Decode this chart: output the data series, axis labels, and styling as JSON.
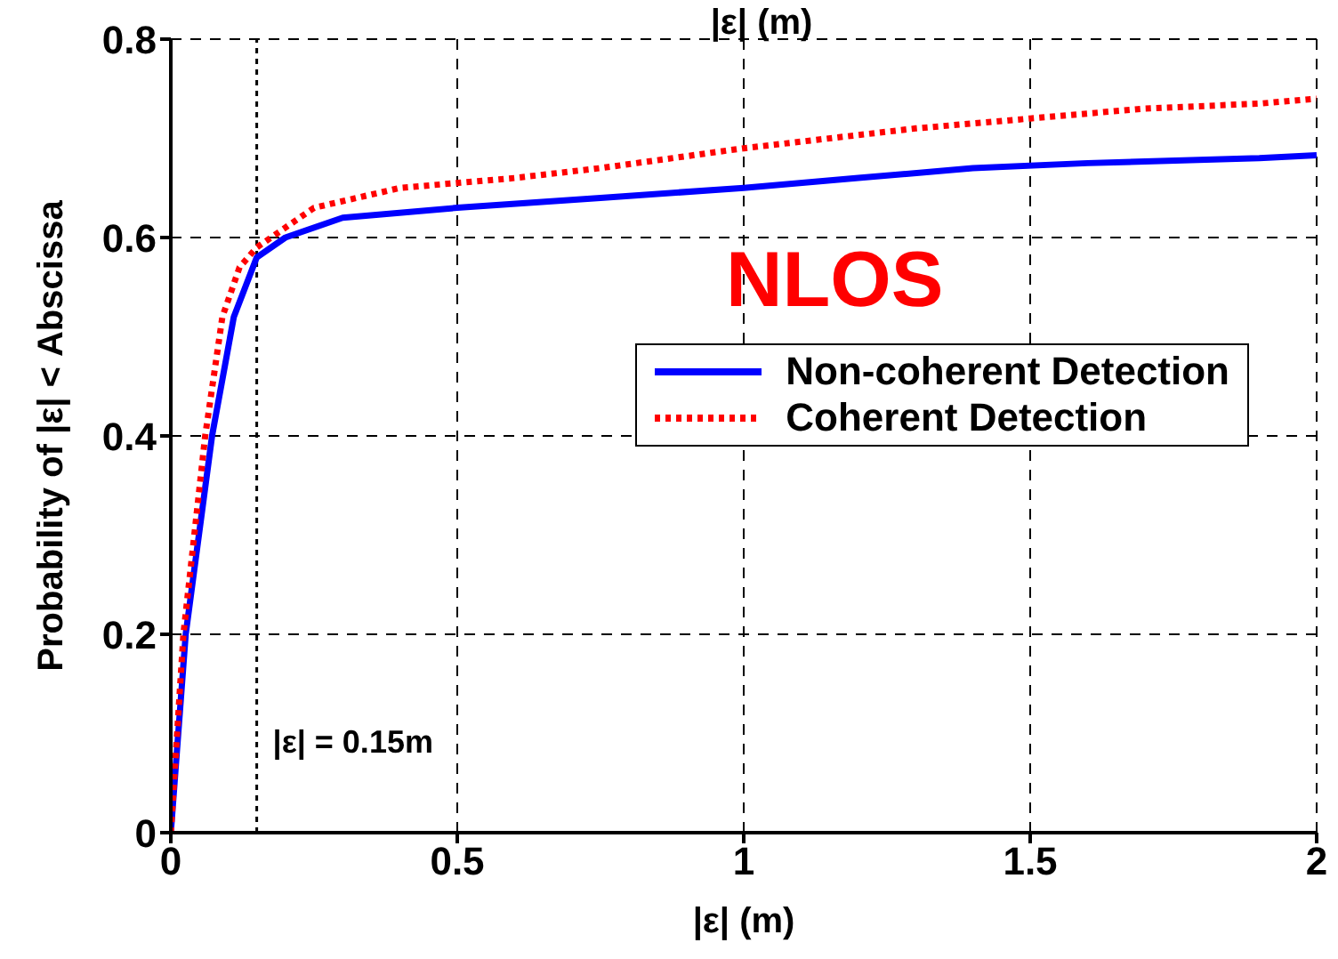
{
  "chart_data": {
    "type": "line",
    "title": "|ε| (m)",
    "xlabel": "|ε| (m)",
    "ylabel": "Probability of |ε| < Abscissa",
    "xlim": [
      0,
      2
    ],
    "xticks": [
      0,
      0.5,
      1,
      1.5,
      2
    ],
    "ylim": [
      0,
      0.8
    ],
    "yticks": [
      0,
      0.2,
      0.4,
      0.6,
      0.8
    ],
    "grid": true,
    "legend": "right",
    "series": [
      {
        "name": "Non-coherent Detection",
        "color": "#0000ff",
        "line_style": "solid",
        "x": [
          0,
          0.026,
          0.072,
          0.11,
          0.13,
          0.15,
          0.2,
          0.3,
          0.5,
          0.75,
          1.0,
          1.2,
          1.4,
          1.6,
          1.9,
          2.0
        ],
        "values": [
          0,
          0.2,
          0.4,
          0.52,
          0.55,
          0.58,
          0.6,
          0.62,
          0.63,
          0.64,
          0.65,
          0.66,
          0.67,
          0.675,
          0.68,
          0.683
        ]
      },
      {
        "name": "Coherent Detection",
        "color": "#ff0000",
        "line_style": "dotted",
        "x": [
          0,
          0.022,
          0.06,
          0.09,
          0.12,
          0.15,
          0.25,
          0.4,
          0.6,
          0.75,
          1.0,
          1.3,
          1.5,
          1.7,
          1.9,
          2.0
        ],
        "values": [
          0,
          0.2,
          0.4,
          0.52,
          0.57,
          0.59,
          0.63,
          0.65,
          0.66,
          0.67,
          0.69,
          0.71,
          0.72,
          0.73,
          0.735,
          0.74
        ]
      }
    ],
    "ref_lines": [
      {
        "axis": "x",
        "value": 0.15,
        "label": "|ε| = 0.15m",
        "line_style": "dotted",
        "color": "#000000"
      }
    ],
    "annotations": [
      "NLOS"
    ]
  }
}
